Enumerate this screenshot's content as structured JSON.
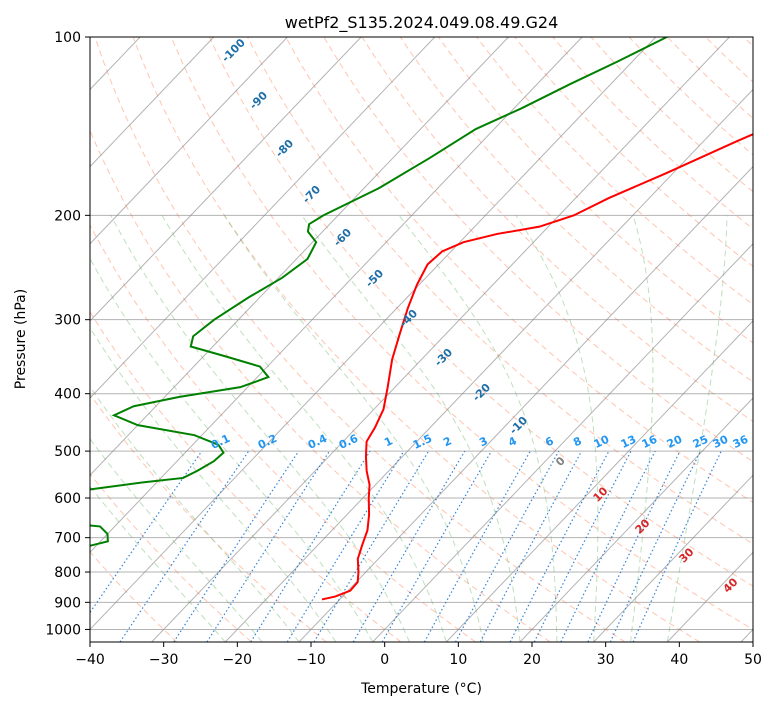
{
  "chart_data": {
    "type": "line",
    "subtype": "skew-T log-P",
    "title": "wetPf2_S135.2024.049.08.49.G24",
    "xlabel": "Temperature (°C)",
    "ylabel": "Pressure (hPa)",
    "xlim": [
      -40,
      50
    ],
    "ylim": [
      1050,
      100
    ],
    "x_ticks": [
      "−40",
      "−30",
      "−20",
      "−10",
      "0",
      "10",
      "20",
      "30",
      "40",
      "50"
    ],
    "x_tick_values": [
      -40,
      -30,
      -20,
      -10,
      0,
      10,
      20,
      30,
      40,
      50
    ],
    "y_ticks": [
      "100",
      "200",
      "300",
      "400",
      "500",
      "600",
      "700",
      "800",
      "900",
      "1000"
    ],
    "y_tick_values": [
      100,
      200,
      300,
      400,
      500,
      600,
      700,
      800,
      900,
      1000
    ],
    "y_scale": "log",
    "grid": true,
    "colors": {
      "temperature": "#ff0000",
      "dewpoint": "#008000",
      "dry_adiabat": "#ff7f50",
      "moist_adiabat": "#7fbf7f",
      "mixing_ratio": "#1f77d4",
      "isotherm": "#808080",
      "label_upper": "#1f6fa8",
      "label_mixing": "#2196f3",
      "label_warm": "#d62728",
      "label_zero": "#808080"
    },
    "series": [
      {
        "type": "temperature",
        "points": [
          [
            1.0,
            100
          ],
          [
            -2.5,
            110
          ],
          [
            -6.0,
            120
          ],
          [
            -10.5,
            135
          ],
          [
            -15.5,
            150
          ],
          [
            -21.0,
            170
          ],
          [
            -25.5,
            187
          ],
          [
            -28.0,
            200
          ],
          [
            -31.2,
            209
          ],
          [
            -36.0,
            215
          ],
          [
            -39.5,
            222
          ],
          [
            -41.2,
            230
          ],
          [
            -41.5,
            242
          ],
          [
            -40.3,
            262
          ],
          [
            -38.5,
            287
          ],
          [
            -36.2,
            318
          ],
          [
            -34.0,
            350
          ],
          [
            -31.0,
            390
          ],
          [
            -28.7,
            425
          ],
          [
            -27.5,
            456
          ],
          [
            -26.8,
            482
          ],
          [
            -25.0,
            510
          ],
          [
            -23.0,
            540
          ],
          [
            -20.8,
            570
          ],
          [
            -19.2,
            600
          ],
          [
            -17.0,
            640
          ],
          [
            -15.2,
            680
          ],
          [
            -14.0,
            720
          ],
          [
            -12.8,
            760
          ],
          [
            -11.0,
            800
          ],
          [
            -9.8,
            832
          ],
          [
            -9.7,
            860
          ],
          [
            -11.0,
            880
          ],
          [
            -12.4,
            890
          ]
        ]
      },
      {
        "type": "dewpoint",
        "points": [
          [
            -38.5,
            100
          ],
          [
            -42.0,
            110
          ],
          [
            -45.5,
            120
          ],
          [
            -49.0,
            132
          ],
          [
            -52.5,
            143
          ],
          [
            -55.0,
            160
          ],
          [
            -58.0,
            180
          ],
          [
            -62.0,
            200
          ],
          [
            -62.8,
            207
          ],
          [
            -62.0,
            213
          ],
          [
            -59.5,
            222
          ],
          [
            -58.5,
            237
          ],
          [
            -59.5,
            255
          ],
          [
            -61.5,
            275
          ],
          [
            -63.3,
            300
          ],
          [
            -64.0,
            320
          ],
          [
            -63.0,
            333
          ],
          [
            -57.0,
            346
          ],
          [
            -51.0,
            360
          ],
          [
            -48.5,
            375
          ],
          [
            -51.0,
            390
          ],
          [
            -58.0,
            405
          ],
          [
            -63.0,
            420
          ],
          [
            -64.5,
            435
          ],
          [
            -60.0,
            452
          ],
          [
            -51.0,
            470
          ],
          [
            -46.5,
            488
          ],
          [
            -44.8,
            503
          ],
          [
            -45.0,
            520
          ],
          [
            -46.0,
            540
          ],
          [
            -47.0,
            555
          ],
          [
            -52.0,
            565
          ],
          [
            -58.0,
            580
          ],
          [
            -62.5,
            600
          ],
          [
            -66.0,
            620
          ],
          [
            -65.0,
            640
          ],
          [
            -58.0,
            660
          ],
          [
            -52.0,
            670
          ],
          [
            -50.0,
            690
          ],
          [
            -49.0,
            710
          ],
          [
            -52.0,
            730
          ],
          [
            -57.0,
            750
          ],
          [
            -62.5,
            780
          ],
          [
            -63.5,
            800
          ],
          [
            -62.0,
            828
          ],
          [
            -62.0,
            840
          ],
          [
            -63.5,
            855
          ],
          [
            -66.0,
            870
          ],
          [
            -65.5,
            880
          ],
          [
            -63.5,
            884
          ],
          [
            -60.0,
            888
          ]
        ]
      }
    ],
    "upper_labels": [
      "-100",
      "-90",
      "-80",
      "-70",
      "-60",
      "-50",
      "-40",
      "-30",
      "-20",
      "-10",
      "0",
      "10",
      "20",
      "30",
      "40"
    ],
    "mixing_ratio_labels": [
      "0.1",
      "0.2",
      "0.4",
      "0.6",
      "1",
      "1.5",
      "2",
      "3",
      "4",
      "6",
      "8",
      "10",
      "13",
      "16",
      "20",
      "25",
      "30",
      "36"
    ]
  }
}
